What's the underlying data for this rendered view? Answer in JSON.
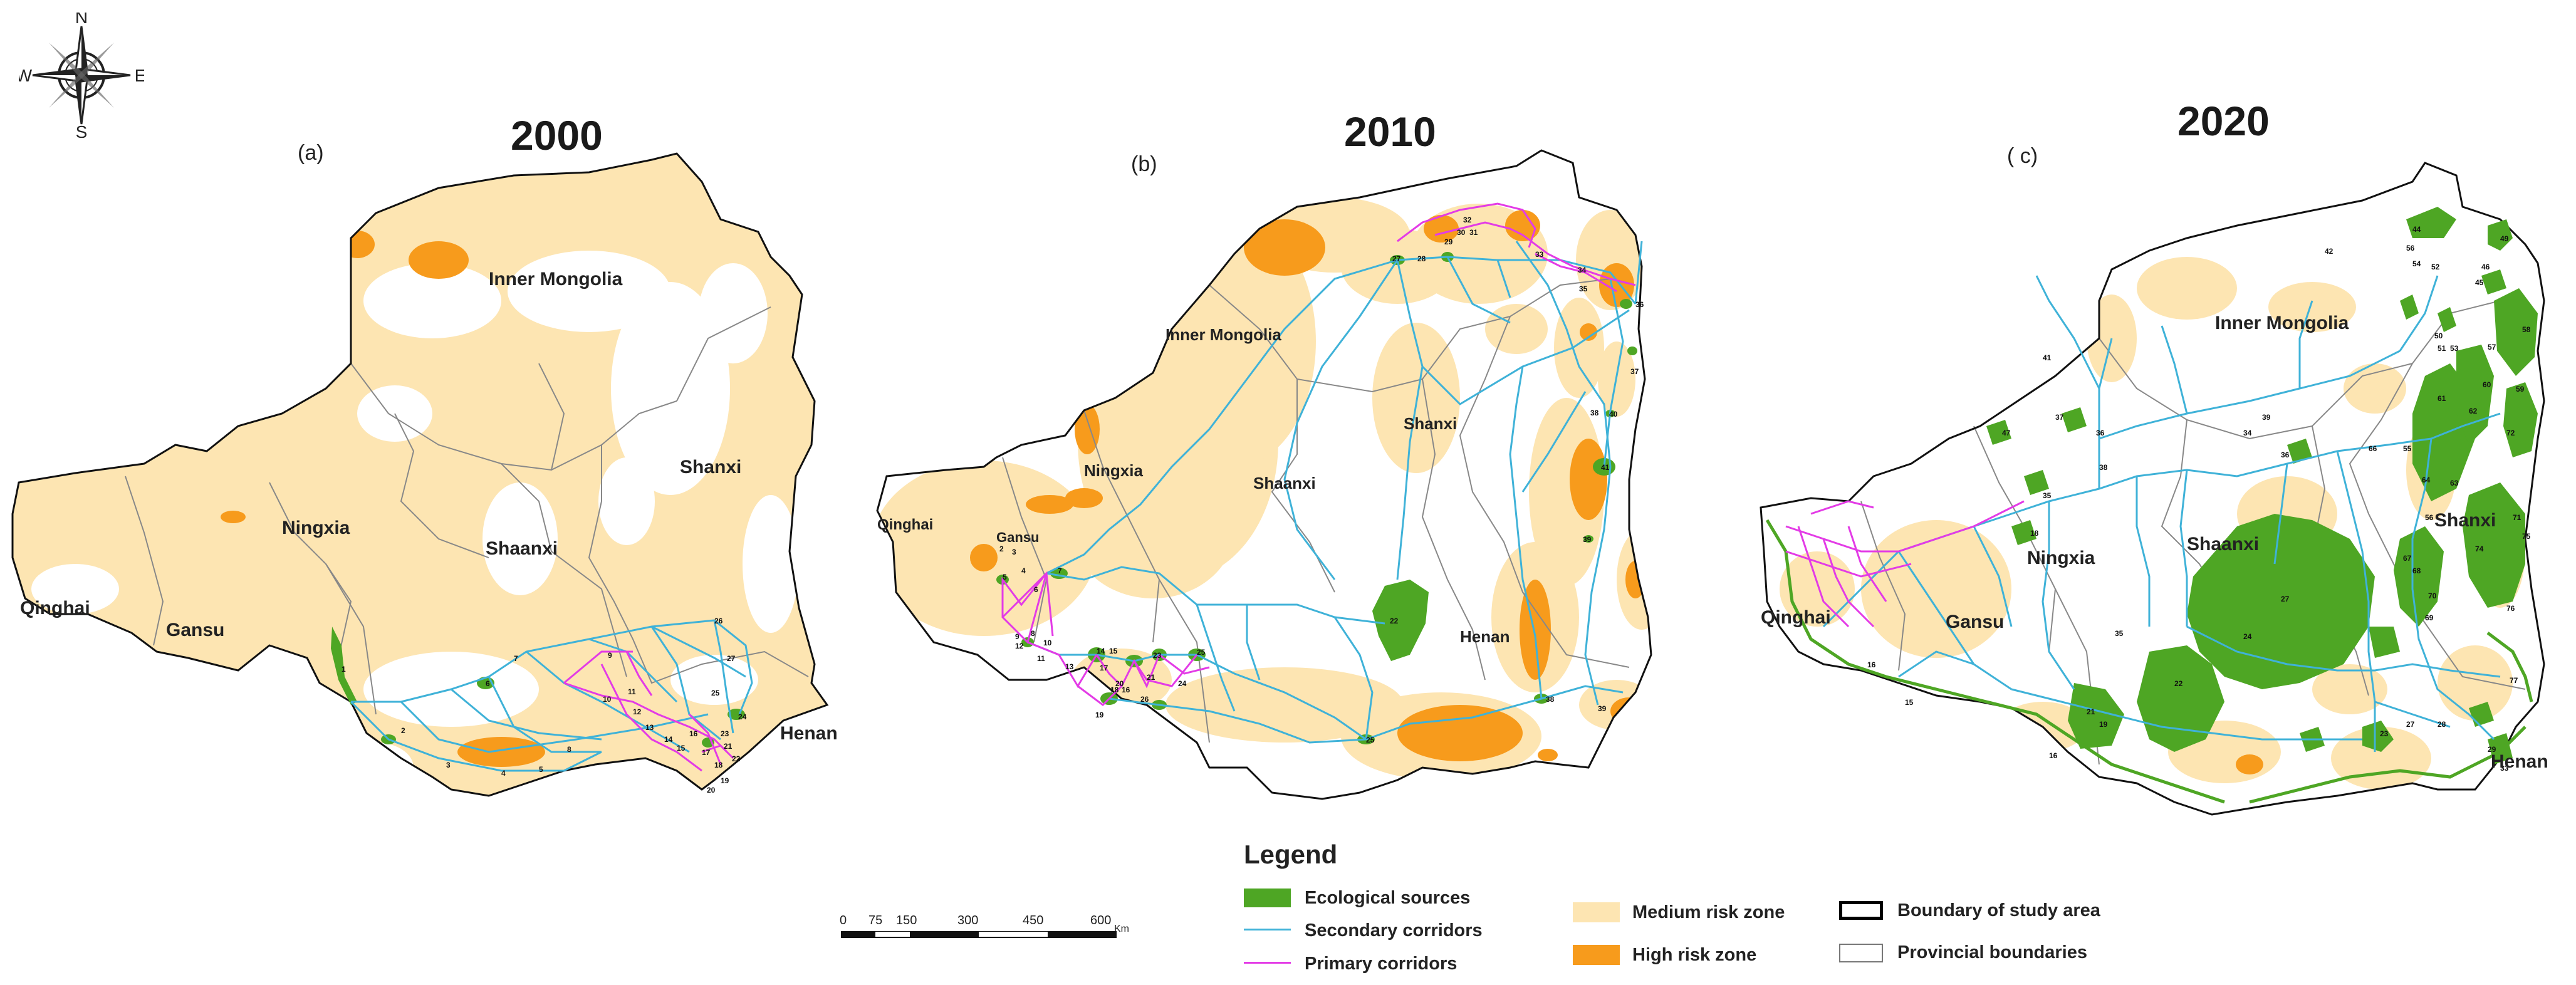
{
  "compass": {
    "n": "N",
    "s": "S",
    "e": "E",
    "w": "W"
  },
  "panels": [
    {
      "label": "(a)",
      "year": "2000",
      "provinces": [
        "Inner Mongolia",
        "Ningxia",
        "Shaanxi",
        "Shanxi",
        "Qinghai",
        "Gansu",
        "Henan"
      ]
    },
    {
      "label": "(b)",
      "year": "2010",
      "provinces": [
        "Inner Mongolia",
        "Ningxia",
        "Shaanxi",
        "Shanxi",
        "Qinghai",
        "Gansu",
        "Henan"
      ]
    },
    {
      "label": "( c)",
      "year": "2020",
      "provinces": [
        "Inner Mongolia",
        "Ningxia",
        "Shaanxi",
        "Shanxi",
        "Qinghai",
        "Gansu",
        "Henan"
      ]
    }
  ],
  "legend": {
    "title": "Legend",
    "items": [
      {
        "label": "Ecological sources",
        "color": "#4ea624"
      },
      {
        "label": "Secondary corridors",
        "color": "#3fb2d8"
      },
      {
        "label": "Primary corridors",
        "color": "#e33be6"
      },
      {
        "label": "Medium risk zone",
        "color": "#fde5b2"
      },
      {
        "label": "High risk zone",
        "color": "#f79b1c"
      },
      {
        "label": "Boundary of study area",
        "color": "#000000"
      },
      {
        "label": "Provincial boundaries",
        "color": "#777777"
      }
    ]
  },
  "scale": {
    "ticks": [
      "0",
      "75",
      "150",
      "300",
      "450",
      "600"
    ],
    "unit": "Km"
  },
  "colors": {
    "medium": "#fde5b2",
    "high": "#f79b1c",
    "source": "#4ea624",
    "secondary": "#3fb2d8",
    "primary": "#e33be6"
  }
}
